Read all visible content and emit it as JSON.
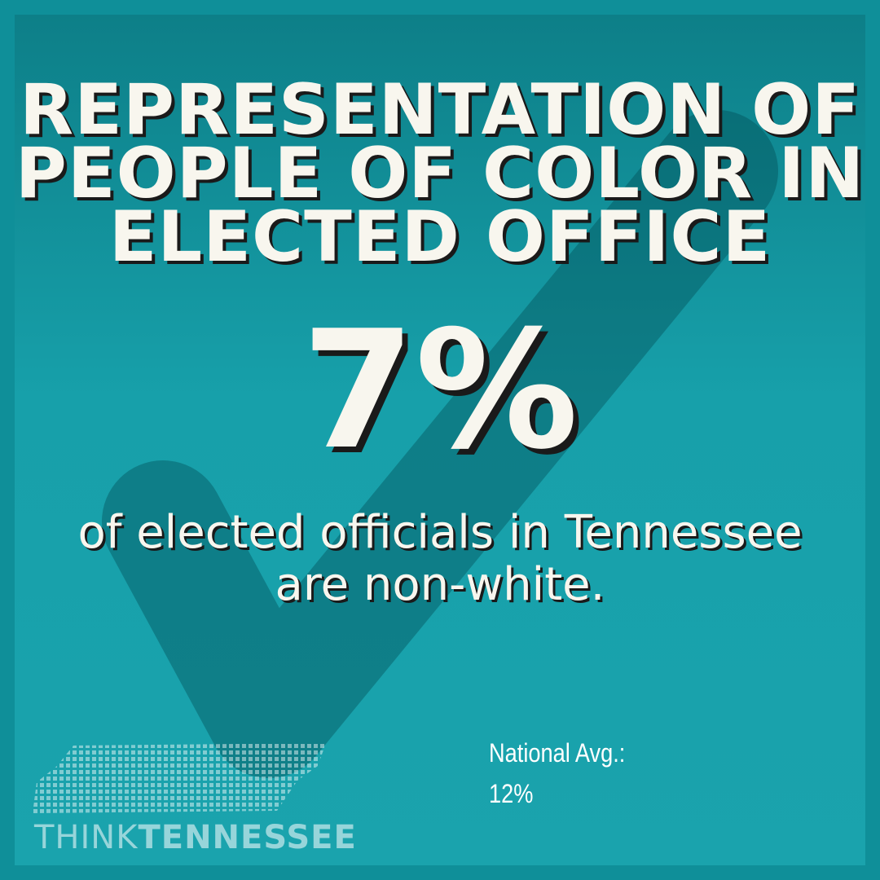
{
  "title_lines": [
    "REPRESENTATION OF",
    "PEOPLE OF COLOR IN",
    "ELECTED OFFICE"
  ],
  "stat": "7%",
  "description_lines": [
    "of elected officials in Tennessee",
    "are non-white."
  ],
  "national": {
    "label": "National Avg.:",
    "value": "12%"
  },
  "logo": {
    "think": "THINK",
    "tennessee": "TENNESSEE"
  }
}
